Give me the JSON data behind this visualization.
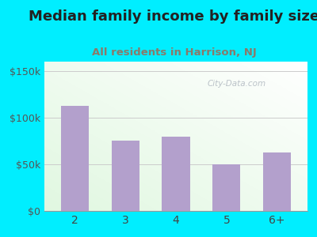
{
  "title": "Median family income by family size",
  "subtitle": "All residents in Harrison, NJ",
  "categories": [
    "2",
    "3",
    "4",
    "5",
    "6+"
  ],
  "values": [
    113000,
    75000,
    80000,
    50000,
    63000
  ],
  "bar_color": "#b3a0cc",
  "background_outer": "#00eeff",
  "title_color": "#222222",
  "subtitle_color": "#8a7a6a",
  "yticks": [
    0,
    50000,
    100000,
    150000
  ],
  "ytick_labels": [
    "$0",
    "$50k",
    "$100k",
    "$150k"
  ],
  "ylim": [
    0,
    160000
  ],
  "title_fontsize": 13,
  "subtitle_fontsize": 9.5,
  "watermark": "City-Data.com"
}
